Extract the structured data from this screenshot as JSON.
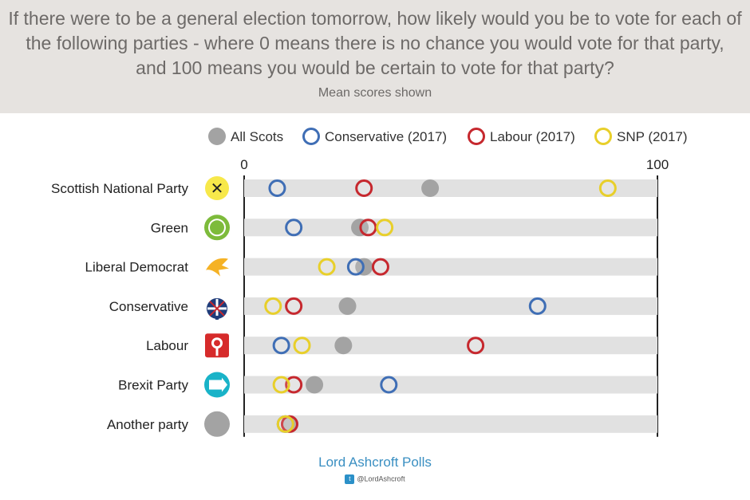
{
  "header": {
    "question": "If there were to be a general election tomorrow, how likely would you be to vote for each of the following parties - where 0 means there is no chance you would vote for that party, and 100 means you would be certain to vote for that party?",
    "subtitle": "Mean scores shown"
  },
  "footer": {
    "brand": "Lord Ashcroft Polls",
    "handle": "@LordAshcroft"
  },
  "chart_data": {
    "type": "scatter",
    "title": "If there were to be a general election tomorrow, how likely would you be to vote for each of the following parties - where 0 means there is no chance you would vote for that party, and 100 means you would be certain to vote for that party?",
    "subtitle": "Mean scores shown",
    "xlim": [
      0,
      100
    ],
    "x_tick_labels": [
      "0",
      "100"
    ],
    "grid": true,
    "legend_position": "top",
    "categories": [
      "Scottish National Party",
      "Green",
      "Liberal Democrat",
      "Conservative",
      "Labour",
      "Brexit Party",
      "Another party"
    ],
    "logos": [
      "snp-logo-icon",
      "scottish-greens-logo-icon",
      "lib-dem-logo-icon",
      "conservative-logo-icon",
      "labour-logo-icon",
      "brexit-party-logo-icon",
      "another-party-icon"
    ],
    "series": [
      {
        "name": "All Scots",
        "marker": "filled",
        "color": "#a3a3a3",
        "values": [
          45,
          28,
          29,
          25,
          24,
          17,
          11
        ]
      },
      {
        "name": "Conservative (2017)",
        "marker": "ring",
        "color": "#3f6eb5",
        "values": [
          8,
          12,
          27,
          71,
          9,
          35,
          10
        ]
      },
      {
        "name": "Labour (2017)",
        "marker": "ring",
        "color": "#c6282e",
        "values": [
          29,
          30,
          33,
          12,
          56,
          12,
          11
        ]
      },
      {
        "name": "SNP (2017)",
        "marker": "ring",
        "color": "#e8cf2a",
        "values": [
          88,
          34,
          20,
          7,
          14,
          9,
          10
        ]
      }
    ]
  }
}
